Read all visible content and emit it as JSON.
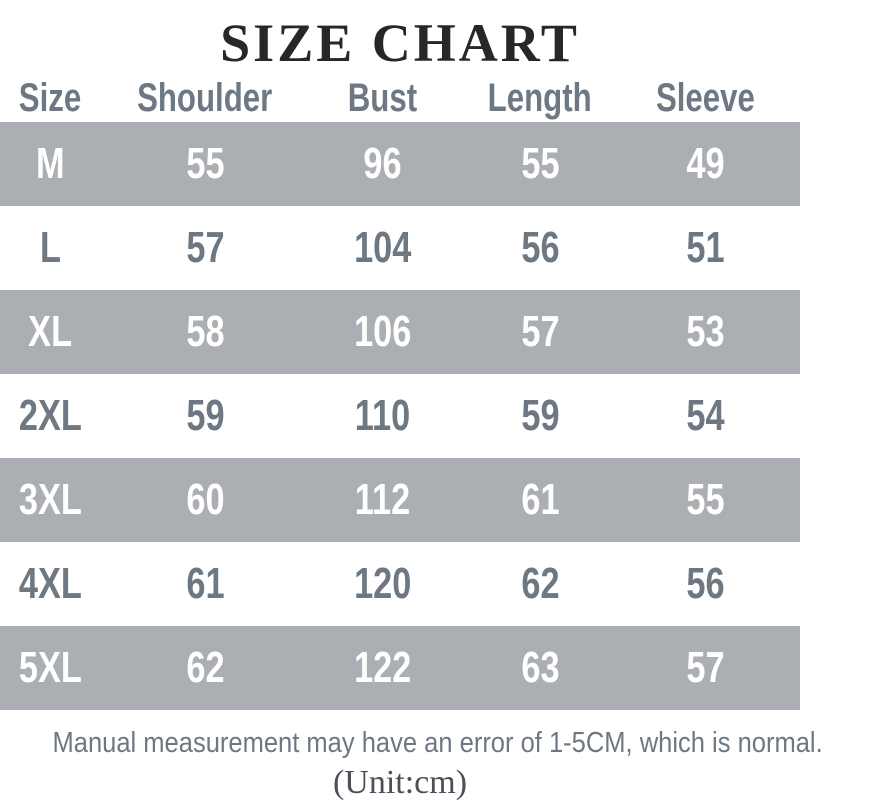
{
  "title": "SIZE CHART",
  "table": {
    "headers": [
      "Size",
      "Shoulder",
      "Bust",
      "Length",
      "Sleeve"
    ],
    "rows": [
      {
        "size": "M",
        "values": [
          "55",
          "96",
          "55",
          "49"
        ]
      },
      {
        "size": "L",
        "values": [
          "57",
          "104",
          "56",
          "51"
        ]
      },
      {
        "size": "XL",
        "values": [
          "58",
          "106",
          "57",
          "53"
        ]
      },
      {
        "size": "2XL",
        "values": [
          "59",
          "110",
          "59",
          "54"
        ]
      },
      {
        "size": "3XL",
        "values": [
          "60",
          "112",
          "61",
          "55"
        ]
      },
      {
        "size": "4XL",
        "values": [
          "61",
          "120",
          "62",
          "56"
        ]
      },
      {
        "size": "5XL",
        "values": [
          "62",
          "122",
          "63",
          "57"
        ]
      }
    ]
  },
  "footer": {
    "note": "Manual measurement may have an error of 1-5CM, which is normal.",
    "unit": "(Unit:cm)"
  },
  "colors": {
    "band_gray": "#abaeb3",
    "slate_text": "#6d7883",
    "title_text": "#27272a",
    "unit_text": "#4b4f58",
    "row_white_text": "#ffffff"
  },
  "chart_data": {
    "type": "table",
    "title": "SIZE CHART",
    "columns": [
      "Size",
      "Shoulder",
      "Bust",
      "Length",
      "Sleeve"
    ],
    "rows": [
      [
        "M",
        55,
        96,
        55,
        49
      ],
      [
        "L",
        57,
        104,
        56,
        51
      ],
      [
        "XL",
        58,
        106,
        57,
        53
      ],
      [
        "2XL",
        59,
        110,
        59,
        54
      ],
      [
        "3XL",
        60,
        112,
        61,
        55
      ],
      [
        "4XL",
        61,
        120,
        62,
        56
      ],
      [
        "5XL",
        62,
        122,
        63,
        57
      ]
    ],
    "unit": "cm",
    "note": "Manual measurement may have an error of 1-5CM, which is normal.",
    "layout": "alternating gray/white rows, gray header text, centered columns"
  }
}
